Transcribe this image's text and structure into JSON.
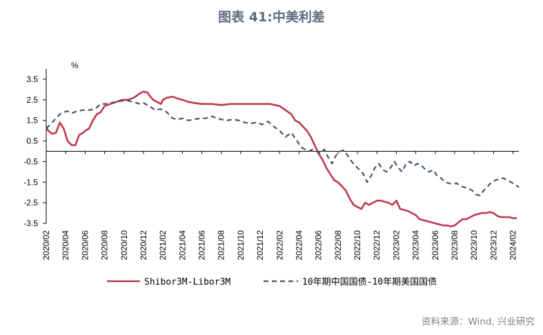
{
  "title": "图表 41:中美利差",
  "source": "资料来源：Wind, 兴业研究",
  "chart_data": {
    "type": "line",
    "title": "图表 41:中美利差",
    "ylabel": "%",
    "ylim": [
      -3.5,
      4.0
    ],
    "yticks": [
      "3.5",
      "2.5",
      "1.5",
      "0.5",
      "-0.5",
      "-1.5",
      "-2.5",
      "-3.5"
    ],
    "ytick_values": [
      3.5,
      2.5,
      1.5,
      0.5,
      -0.5,
      -1.5,
      -2.5,
      -3.5
    ],
    "xticks": [
      "2020/02",
      "2020/04",
      "2020/06",
      "2020/08",
      "2020/10",
      "2020/12",
      "2021/02",
      "2021/04",
      "2021/06",
      "2021/08",
      "2021/10",
      "2021/12",
      "2022/02",
      "2022/04",
      "2022/06",
      "2022/08",
      "2022/10",
      "2022/12",
      "2023/02",
      "2023/04",
      "2023/06",
      "2023/08",
      "2023/10",
      "2023/12",
      "2024/02"
    ],
    "x_range": [
      0,
      24.3
    ],
    "legend_position": "bottom",
    "series": [
      {
        "name": "Shibor3M-Libor3M",
        "color": "#c1374a",
        "dash": "solid",
        "x": [
          0,
          0.1,
          0.3,
          0.5,
          0.7,
          0.9,
          1.1,
          1.3,
          1.5,
          1.7,
          1.9,
          2.0,
          2.2,
          2.4,
          2.6,
          2.8,
          3.0,
          3.3,
          3.6,
          3.9,
          4.2,
          4.5,
          4.8,
          5.0,
          5.2,
          5.4,
          5.5,
          5.7,
          5.9,
          6.0,
          6.2,
          6.5,
          6.8,
          7.0,
          7.3,
          7.6,
          8.0,
          8.5,
          9.0,
          9.5,
          10.0,
          10.5,
          11.0,
          11.5,
          12.0,
          12.3,
          12.6,
          12.8,
          13.0,
          13.2,
          13.4,
          13.6,
          13.8,
          14.0,
          14.2,
          14.4,
          14.6,
          14.8,
          15.0,
          15.2,
          15.4,
          15.6,
          15.8,
          16.0,
          16.2,
          16.4,
          16.6,
          16.8,
          17.0,
          17.2,
          17.4,
          17.6,
          17.8,
          18.0,
          18.2,
          18.4,
          18.6,
          18.8,
          19.0,
          19.2,
          19.4,
          19.6,
          19.8,
          20.0,
          20.2,
          20.4,
          20.6,
          20.8,
          21.0,
          21.2,
          21.4,
          21.6,
          21.8,
          22.0,
          22.2,
          22.4,
          22.6,
          22.8,
          23.0,
          23.2,
          23.4,
          23.6,
          23.8,
          24.0,
          24.2
        ],
        "values": [
          1.2,
          1.0,
          0.85,
          0.9,
          1.4,
          1.1,
          0.5,
          0.3,
          0.3,
          0.8,
          0.9,
          1.0,
          1.1,
          1.5,
          1.8,
          1.9,
          2.2,
          2.3,
          2.4,
          2.5,
          2.5,
          2.6,
          2.8,
          2.9,
          2.85,
          2.6,
          2.5,
          2.4,
          2.3,
          2.5,
          2.6,
          2.65,
          2.55,
          2.5,
          2.4,
          2.35,
          2.3,
          2.3,
          2.25,
          2.3,
          2.3,
          2.3,
          2.3,
          2.3,
          2.2,
          2.0,
          1.8,
          1.5,
          1.4,
          1.2,
          1.0,
          0.7,
          0.3,
          -0.1,
          -0.4,
          -0.8,
          -1.1,
          -1.4,
          -1.5,
          -1.7,
          -1.9,
          -2.3,
          -2.6,
          -2.7,
          -2.8,
          -2.5,
          -2.6,
          -2.5,
          -2.4,
          -2.4,
          -2.45,
          -2.5,
          -2.6,
          -2.4,
          -2.8,
          -2.85,
          -2.9,
          -3.0,
          -3.1,
          -3.3,
          -3.35,
          -3.4,
          -3.45,
          -3.5,
          -3.55,
          -3.6,
          -3.6,
          -3.65,
          -3.6,
          -3.45,
          -3.3,
          -3.3,
          -3.2,
          -3.1,
          -3.05,
          -3.0,
          -3.0,
          -2.95,
          -3.0,
          -3.15,
          -3.2,
          -3.2,
          -3.2,
          -3.25,
          -3.25
        ]
      },
      {
        "name": "10年期中国国债-10年期美国国债",
        "color": "#44546a",
        "dash": "dashed",
        "x": [
          0,
          0.3,
          0.5,
          0.7,
          0.9,
          1.1,
          1.3,
          1.6,
          1.9,
          2.2,
          2.5,
          2.8,
          3.0,
          3.3,
          3.6,
          3.9,
          4.2,
          4.5,
          4.8,
          5.0,
          5.3,
          5.6,
          5.9,
          6.2,
          6.5,
          6.8,
          7.0,
          7.3,
          7.6,
          7.9,
          8.2,
          8.5,
          8.8,
          9.0,
          9.3,
          9.6,
          9.9,
          10.2,
          10.5,
          10.8,
          11.1,
          11.4,
          11.7,
          12.0,
          12.3,
          12.6,
          12.9,
          13.1,
          13.3,
          13.5,
          13.7,
          13.9,
          14.1,
          14.3,
          14.5,
          14.7,
          14.9,
          15.1,
          15.3,
          15.5,
          15.7,
          15.9,
          16.1,
          16.3,
          16.5,
          16.7,
          16.9,
          17.1,
          17.3,
          17.5,
          17.7,
          17.9,
          18.1,
          18.3,
          18.5,
          18.7,
          18.9,
          19.1,
          19.3,
          19.5,
          19.7,
          19.9,
          20.1,
          20.3,
          20.5,
          20.7,
          20.9,
          21.1,
          21.3,
          21.5,
          21.7,
          21.9,
          22.1,
          22.3,
          22.5,
          22.7,
          22.9,
          23.1,
          23.3,
          23.5,
          23.7,
          23.9,
          24.1,
          24.3
        ],
        "values": [
          1.1,
          1.4,
          1.6,
          1.8,
          1.9,
          1.95,
          1.85,
          1.95,
          2.0,
          2.0,
          2.05,
          2.3,
          2.3,
          2.35,
          2.4,
          2.45,
          2.45,
          2.4,
          2.3,
          2.35,
          2.2,
          2.0,
          2.05,
          1.9,
          1.6,
          1.55,
          1.6,
          1.5,
          1.55,
          1.6,
          1.6,
          1.7,
          1.6,
          1.55,
          1.5,
          1.55,
          1.5,
          1.4,
          1.35,
          1.4,
          1.3,
          1.45,
          1.2,
          1.0,
          0.7,
          0.9,
          0.5,
          0.2,
          0.1,
          0.0,
          0.1,
          0.0,
          -0.1,
          0.1,
          -0.3,
          -0.6,
          -0.2,
          0.0,
          0.05,
          -0.2,
          -0.5,
          -0.7,
          -0.9,
          -1.1,
          -1.5,
          -1.2,
          -0.8,
          -0.6,
          -0.9,
          -1.0,
          -0.8,
          -0.5,
          -0.8,
          -1.0,
          -0.6,
          -0.5,
          -0.7,
          -0.6,
          -0.7,
          -0.9,
          -1.0,
          -0.9,
          -1.2,
          -1.3,
          -1.5,
          -1.55,
          -1.6,
          -1.55,
          -1.7,
          -1.75,
          -1.8,
          -1.9,
          -2.1,
          -2.15,
          -1.9,
          -1.7,
          -1.5,
          -1.4,
          -1.35,
          -1.3,
          -1.4,
          -1.5,
          -1.6,
          -1.75
        ]
      }
    ]
  }
}
